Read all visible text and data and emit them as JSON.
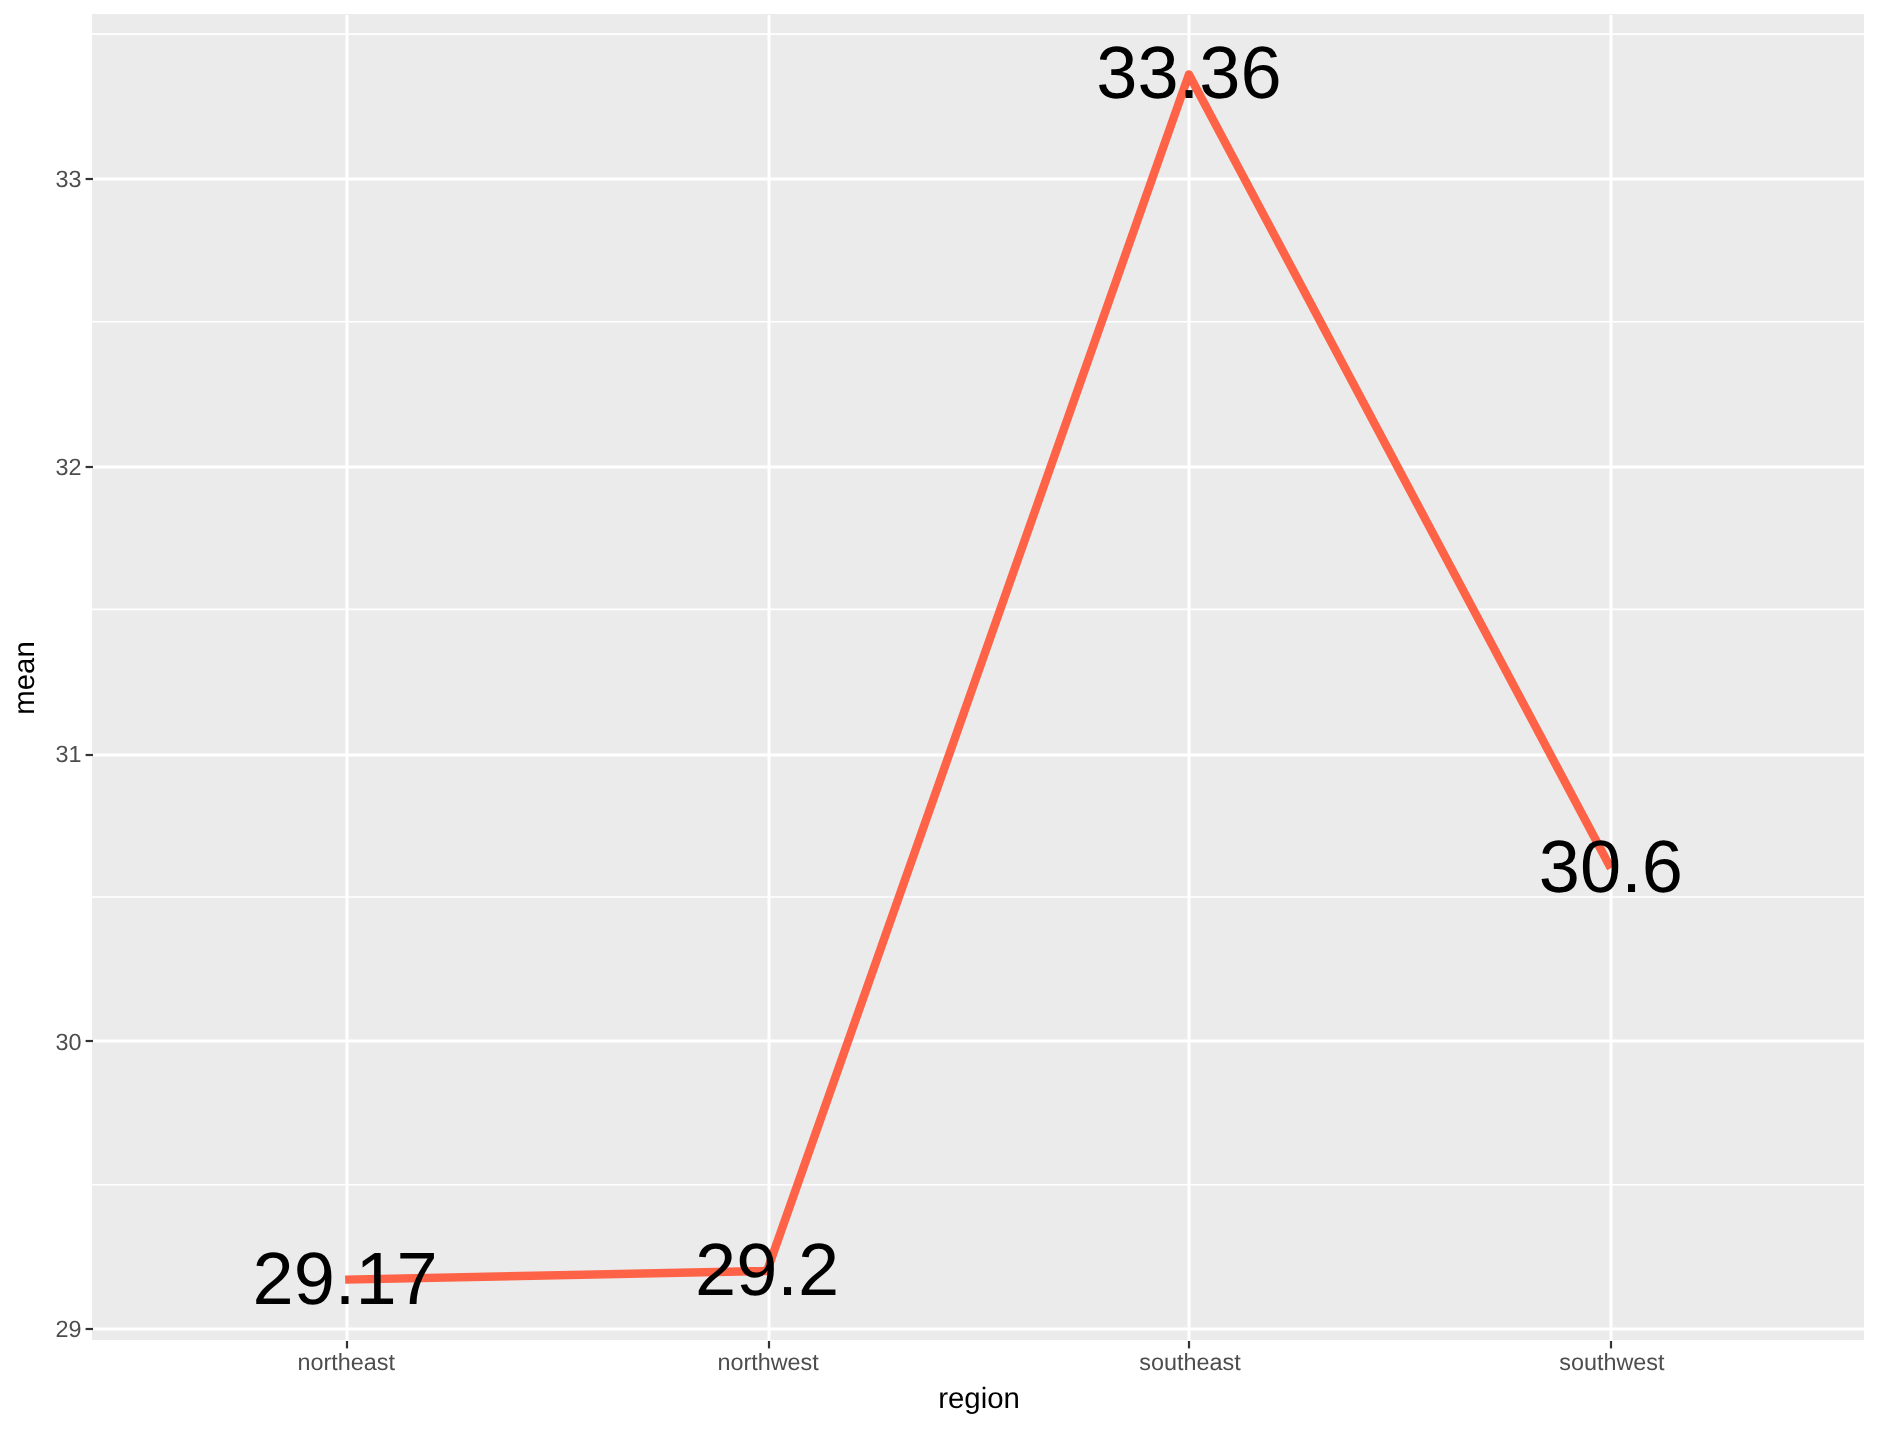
{
  "chart_data": {
    "type": "line",
    "xlabel": "region",
    "ylabel": "mean",
    "categories": [
      "northeast",
      "northwest",
      "southeast",
      "southwest"
    ],
    "series": [
      {
        "color": "#ff6347",
        "values": [
          29.17,
          29.2,
          33.36,
          30.6
        ]
      }
    ],
    "ylim": [
      28.96,
      33.57
    ],
    "yticks": [
      29,
      30,
      31,
      32,
      33
    ],
    "grid": true,
    "data_labels": true,
    "line_style": "solid"
  }
}
